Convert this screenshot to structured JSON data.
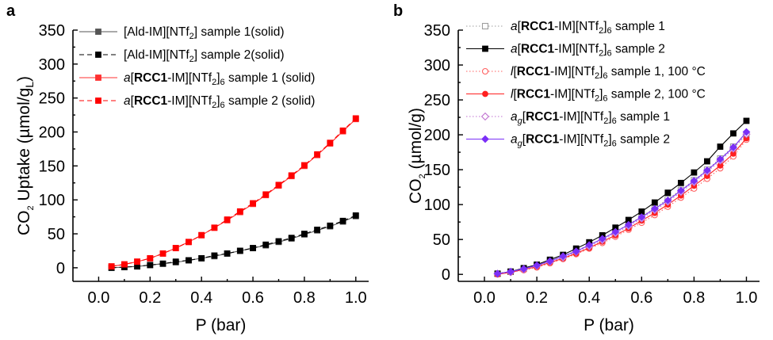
{
  "chart_data": [
    {
      "panel": "a",
      "type": "line",
      "xlabel": "P (bar)",
      "ylabel": "CO2 Uptake (µmol/gL)",
      "xlim": [
        -0.1,
        1.05
      ],
      "ylim": [
        -20,
        350
      ],
      "xticks": [
        "0.0",
        "0.2",
        "0.4",
        "0.6",
        "0.8",
        "1.0"
      ],
      "yticks": [
        "0",
        "50",
        "100",
        "150",
        "200",
        "250",
        "300",
        "350"
      ],
      "legend_position": "top-left",
      "x": [
        0.05,
        0.1,
        0.15,
        0.2,
        0.25,
        0.3,
        0.35,
        0.4,
        0.45,
        0.5,
        0.55,
        0.6,
        0.65,
        0.7,
        0.75,
        0.8,
        0.85,
        0.9,
        0.95,
        1.0
      ],
      "series": [
        {
          "name": "[Ald-IM][NTf2] sample 1(solid)",
          "color": "#555555",
          "marker": "square",
          "line": "solid",
          "values": [
            0,
            1,
            2,
            4,
            6,
            8,
            11,
            14,
            17,
            21,
            25,
            29,
            33,
            38,
            43,
            49,
            55,
            61,
            68,
            76
          ]
        },
        {
          "name": "[Ald-IM][NTf2] sample 2(solid)",
          "color": "#000000",
          "marker": "square",
          "line": "dashed",
          "values": [
            0,
            1,
            2,
            4,
            6,
            9,
            11,
            14,
            18,
            21,
            25,
            29,
            34,
            39,
            44,
            50,
            56,
            62,
            69,
            77
          ]
        },
        {
          "name": "a[RCC1-IM][NTf2]6 sample 1 (solid)",
          "color": "#ff3030",
          "marker": "square",
          "line": "solid",
          "values": [
            2,
            5,
            9,
            14,
            21,
            29,
            38,
            48,
            59,
            70,
            82,
            94,
            107,
            121,
            135,
            150,
            166,
            183,
            201,
            219
          ]
        },
        {
          "name": "a[RCC1-IM][NTf2]6 sample 2 (solid)",
          "color": "#ff0000",
          "marker": "square",
          "line": "dashed",
          "values": [
            2,
            5,
            9,
            14,
            21,
            29,
            38,
            48,
            59,
            71,
            83,
            95,
            108,
            122,
            136,
            151,
            167,
            184,
            202,
            220
          ]
        }
      ]
    },
    {
      "panel": "b",
      "type": "line",
      "xlabel": "P (bar)",
      "ylabel": "CO2 (µmol/g)",
      "xlim": [
        -0.1,
        1.05
      ],
      "ylim": [
        -10,
        350
      ],
      "xticks": [
        "0.0",
        "0.2",
        "0.4",
        "0.6",
        "0.8",
        "1.0"
      ],
      "yticks": [
        "0",
        "50",
        "100",
        "150",
        "200",
        "250",
        "300",
        "350"
      ],
      "legend_position": "top-left",
      "x": [
        0.05,
        0.1,
        0.15,
        0.2,
        0.25,
        0.3,
        0.35,
        0.4,
        0.45,
        0.5,
        0.55,
        0.6,
        0.65,
        0.7,
        0.75,
        0.8,
        0.85,
        0.9,
        0.95,
        1.0
      ],
      "series": [
        {
          "name": "a[RCC1-IM][NTf2]6 sample 1",
          "color": "#9e9e9e",
          "marker": "square-open",
          "line": "dotted",
          "values": [
            1,
            4,
            8,
            13,
            19,
            26,
            34,
            42,
            51,
            61,
            72,
            83,
            95,
            108,
            121,
            135,
            150,
            166,
            183,
            200
          ]
        },
        {
          "name": "a[RCC1-IM][NTf2]6 sample 2",
          "color": "#000000",
          "marker": "square",
          "line": "solid",
          "values": [
            1,
            4,
            9,
            14,
            21,
            28,
            37,
            46,
            56,
            67,
            78,
            90,
            103,
            117,
            131,
            146,
            162,
            183,
            202,
            220
          ]
        },
        {
          "name": "l[RCC1-IM][NTf2]6 sample 1, 100 °C",
          "color": "#ff6060",
          "marker": "circle-open",
          "line": "dotted",
          "values": [
            0,
            3,
            6,
            10,
            16,
            22,
            29,
            37,
            45,
            54,
            64,
            74,
            85,
            97,
            110,
            123,
            137,
            152,
            169,
            193
          ]
        },
        {
          "name": "l[RCC1-IM][NTf2]6 sample 2, 100 °C",
          "color": "#ff2020",
          "marker": "circle",
          "line": "solid",
          "values": [
            0,
            3,
            7,
            11,
            17,
            23,
            30,
            38,
            47,
            56,
            66,
            77,
            88,
            100,
            113,
            127,
            141,
            156,
            173,
            195
          ]
        },
        {
          "name": "ag[RCC1-IM][NTf2]6 sample 1",
          "color": "#c070d0",
          "marker": "diamond-open",
          "line": "dotted",
          "values": [
            1,
            3,
            7,
            12,
            18,
            24,
            32,
            40,
            49,
            59,
            69,
            80,
            92,
            104,
            118,
            132,
            147,
            163,
            180,
            201
          ]
        },
        {
          "name": "ag[RCC1-IM][NTf2]6 sample 2",
          "color": "#7b2ff7",
          "marker": "diamond",
          "line": "solid",
          "values": [
            1,
            4,
            8,
            13,
            19,
            26,
            33,
            42,
            51,
            61,
            71,
            82,
            94,
            106,
            120,
            134,
            149,
            165,
            182,
            204
          ]
        }
      ]
    }
  ],
  "panels": [
    {
      "letter": "a",
      "ylabel_parts": {
        "pre": "CO",
        "sub1": "2",
        "mid": " Uptake (µmol/g",
        "sub2": "L",
        "post": ")"
      },
      "xlabel": "P (bar)",
      "legend": [
        {
          "pre_italic": "",
          "pre": "[Ald-IM][NTf",
          "bold": "",
          "mid": "",
          "sub": "2",
          "post": "] sample 1(solid)",
          "sub_after_italic": ""
        },
        {
          "pre_italic": "",
          "pre": "[Ald-IM][NTf",
          "bold": "",
          "mid": "",
          "sub": "2",
          "post": "] sample 2(solid)",
          "sub_after_italic": ""
        },
        {
          "pre_italic": "a",
          "pre": "[",
          "bold": "RCC1",
          "mid": "-IM][NTf",
          "sub": "2",
          "post": "]",
          "sub2": "6",
          "post2": " sample 1 (solid)",
          "sub_after_italic": ""
        },
        {
          "pre_italic": "a",
          "pre": "[",
          "bold": "RCC1",
          "mid": "-IM][NTf",
          "sub": "2",
          "post": "]",
          "sub2": "6",
          "post2": " sample 2 (solid)",
          "sub_after_italic": ""
        }
      ]
    },
    {
      "letter": "b",
      "ylabel_parts": {
        "pre": "CO",
        "sub1": "2",
        "mid": " (µmol/g)",
        "sub2": "",
        "post": ""
      },
      "xlabel": "P (bar)",
      "legend": [
        {
          "pre_italic": "a",
          "pre": "[",
          "bold": "RCC1",
          "mid": "-IM][NTf",
          "sub": "2",
          "post": "]",
          "sub2": "6",
          "post2": " sample 1",
          "sub_after_italic": ""
        },
        {
          "pre_italic": "a",
          "pre": "[",
          "bold": "RCC1",
          "mid": "-IM][NTf",
          "sub": "2",
          "post": "]",
          "sub2": "6",
          "post2": " sample 2",
          "sub_after_italic": ""
        },
        {
          "pre_italic": "l",
          "pre": "[",
          "bold": "RCC1",
          "mid": "-IM][NTf",
          "sub": "2",
          "post": "]",
          "sub2": "6",
          "post2": " sample 1, 100 °C",
          "sub_after_italic": ""
        },
        {
          "pre_italic": "l",
          "pre": "[",
          "bold": "RCC1",
          "mid": "-IM][NTf",
          "sub": "2",
          "post": "]",
          "sub2": "6",
          "post2": " sample 2, 100 °C",
          "sub_after_italic": ""
        },
        {
          "pre_italic": "a",
          "pre": "[",
          "bold": "RCC1",
          "mid": "-IM][NTf",
          "sub": "2",
          "post": "]",
          "sub2": "6",
          "post2": " sample 1",
          "sub_after_italic": "g"
        },
        {
          "pre_italic": "a",
          "pre": "[",
          "bold": "RCC1",
          "mid": "-IM][NTf",
          "sub": "2",
          "post": "]",
          "sub2": "6",
          "post2": " sample 2",
          "sub_after_italic": "g"
        }
      ]
    }
  ]
}
